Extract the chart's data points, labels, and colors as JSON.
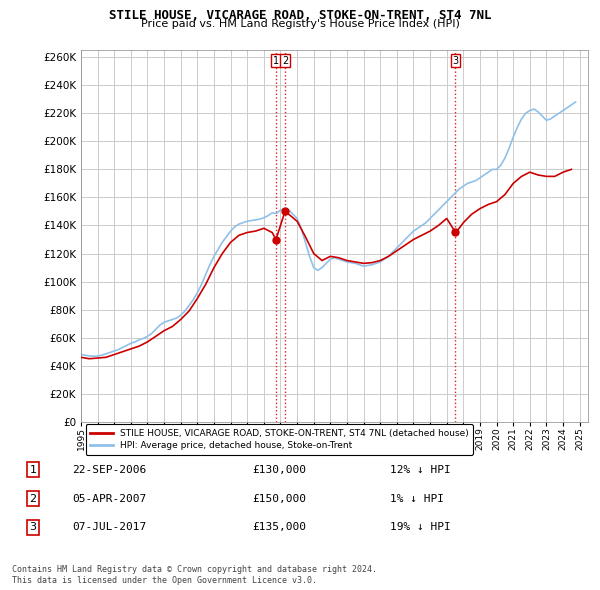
{
  "title": "STILE HOUSE, VICARAGE ROAD, STOKE-ON-TRENT, ST4 7NL",
  "subtitle": "Price paid vs. HM Land Registry's House Price Index (HPI)",
  "ylim": [
    0,
    265000
  ],
  "yticks": [
    0,
    20000,
    40000,
    60000,
    80000,
    100000,
    120000,
    140000,
    160000,
    180000,
    200000,
    220000,
    240000,
    260000
  ],
  "xlim_start": 1995.0,
  "xlim_end": 2025.5,
  "transactions": [
    {
      "label": "1",
      "year": 2006.73,
      "price": 130000
    },
    {
      "label": "2",
      "year": 2007.27,
      "price": 150000
    },
    {
      "label": "3",
      "year": 2017.52,
      "price": 135000
    }
  ],
  "vline_color": "#dd2222",
  "transaction_marker_color": "#cc0000",
  "hpi_line_color": "#90c0e8",
  "price_line_color": "#cc0000",
  "grid_color": "#cccccc",
  "legend_label_price": "STILE HOUSE, VICARAGE ROAD, STOKE-ON-TRENT, ST4 7NL (detached house)",
  "legend_label_hpi": "HPI: Average price, detached house, Stoke-on-Trent",
  "footer": "Contains HM Land Registry data © Crown copyright and database right 2024.\nThis data is licensed under the Open Government Licence v3.0.",
  "table_rows": [
    [
      "1",
      "22-SEP-2006",
      "£130,000",
      "12% ↓ HPI"
    ],
    [
      "2",
      "05-APR-2007",
      "£150,000",
      "1% ↓ HPI"
    ],
    [
      "3",
      "07-JUL-2017",
      "£135,000",
      "19% ↓ HPI"
    ]
  ],
  "hpi_data": {
    "years": [
      1995.0,
      1995.25,
      1995.5,
      1995.75,
      1996.0,
      1996.25,
      1996.5,
      1996.75,
      1997.0,
      1997.25,
      1997.5,
      1997.75,
      1998.0,
      1998.25,
      1998.5,
      1998.75,
      1999.0,
      1999.25,
      1999.5,
      1999.75,
      2000.0,
      2000.25,
      2000.5,
      2000.75,
      2001.0,
      2001.25,
      2001.5,
      2001.75,
      2002.0,
      2002.25,
      2002.5,
      2002.75,
      2003.0,
      2003.25,
      2003.5,
      2003.75,
      2004.0,
      2004.25,
      2004.5,
      2004.75,
      2005.0,
      2005.25,
      2005.5,
      2005.75,
      2006.0,
      2006.25,
      2006.5,
      2006.75,
      2007.0,
      2007.25,
      2007.5,
      2007.75,
      2008.0,
      2008.25,
      2008.5,
      2008.75,
      2009.0,
      2009.25,
      2009.5,
      2009.75,
      2010.0,
      2010.25,
      2010.5,
      2010.75,
      2011.0,
      2011.25,
      2011.5,
      2011.75,
      2012.0,
      2012.25,
      2012.5,
      2012.75,
      2013.0,
      2013.25,
      2013.5,
      2013.75,
      2014.0,
      2014.25,
      2014.5,
      2014.75,
      2015.0,
      2015.25,
      2015.5,
      2015.75,
      2016.0,
      2016.25,
      2016.5,
      2016.75,
      2017.0,
      2017.25,
      2017.5,
      2017.75,
      2018.0,
      2018.25,
      2018.5,
      2018.75,
      2019.0,
      2019.25,
      2019.5,
      2019.75,
      2020.0,
      2020.25,
      2020.5,
      2020.75,
      2021.0,
      2021.25,
      2021.5,
      2021.75,
      2022.0,
      2022.25,
      2022.5,
      2022.75,
      2023.0,
      2023.25,
      2023.5,
      2023.75,
      2024.0,
      2024.25,
      2024.5,
      2024.75
    ],
    "values": [
      48000,
      47500,
      47000,
      46800,
      47000,
      47500,
      48500,
      49500,
      50500,
      51500,
      53000,
      54500,
      56000,
      57000,
      58500,
      59500,
      61000,
      63000,
      66000,
      69000,
      71000,
      72000,
      73000,
      74000,
      76000,
      79000,
      83000,
      87000,
      92000,
      98000,
      105000,
      112000,
      118000,
      123000,
      128000,
      132000,
      136000,
      139000,
      141000,
      142000,
      143000,
      143500,
      144000,
      144500,
      145500,
      147000,
      149000,
      148500,
      151000,
      152000,
      151000,
      148000,
      145000,
      138000,
      128000,
      118000,
      110000,
      108000,
      110000,
      113000,
      116000,
      117000,
      116000,
      115000,
      114000,
      113500,
      113000,
      112000,
      111000,
      111500,
      112000,
      113000,
      114000,
      116000,
      118000,
      121000,
      124000,
      127000,
      130000,
      133000,
      136000,
      138000,
      140000,
      142000,
      145000,
      148000,
      151000,
      154000,
      157000,
      160000,
      163000,
      166000,
      168000,
      170000,
      171000,
      172000,
      174000,
      176000,
      178000,
      180000,
      180000,
      183000,
      188000,
      195000,
      203000,
      210000,
      216000,
      220000,
      222000,
      223000,
      221000,
      218000,
      215000,
      216000,
      218000,
      220000,
      222000,
      224000,
      226000,
      228000
    ]
  },
  "price_data": {
    "years": [
      1995.0,
      1995.5,
      1996.0,
      1996.5,
      1997.0,
      1997.5,
      1998.0,
      1998.5,
      1999.0,
      1999.5,
      2000.0,
      2000.5,
      2001.0,
      2001.5,
      2002.0,
      2002.5,
      2003.0,
      2003.5,
      2004.0,
      2004.5,
      2005.0,
      2005.5,
      2006.0,
      2006.5,
      2006.73,
      2007.27,
      2007.5,
      2008.0,
      2008.5,
      2009.0,
      2009.5,
      2010.0,
      2010.5,
      2011.0,
      2011.5,
      2012.0,
      2012.5,
      2013.0,
      2013.5,
      2014.0,
      2014.5,
      2015.0,
      2015.5,
      2016.0,
      2016.5,
      2017.0,
      2017.27,
      2017.52,
      2017.75,
      2018.0,
      2018.5,
      2019.0,
      2019.5,
      2020.0,
      2020.5,
      2021.0,
      2021.5,
      2022.0,
      2022.5,
      2023.0,
      2023.5,
      2024.0,
      2024.5
    ],
    "values": [
      46000,
      45000,
      45500,
      46000,
      48000,
      50000,
      52000,
      54000,
      57000,
      61000,
      65000,
      68000,
      73000,
      79000,
      88000,
      98000,
      110000,
      120000,
      128000,
      133000,
      135000,
      136000,
      138000,
      135000,
      130000,
      150000,
      148000,
      143000,
      132000,
      120000,
      115000,
      118000,
      117000,
      115000,
      114000,
      113000,
      113500,
      115000,
      118000,
      122000,
      126000,
      130000,
      133000,
      136000,
      140000,
      145000,
      140000,
      135000,
      138000,
      142000,
      148000,
      152000,
      155000,
      157000,
      162000,
      170000,
      175000,
      178000,
      176000,
      175000,
      175000,
      178000,
      180000
    ]
  }
}
